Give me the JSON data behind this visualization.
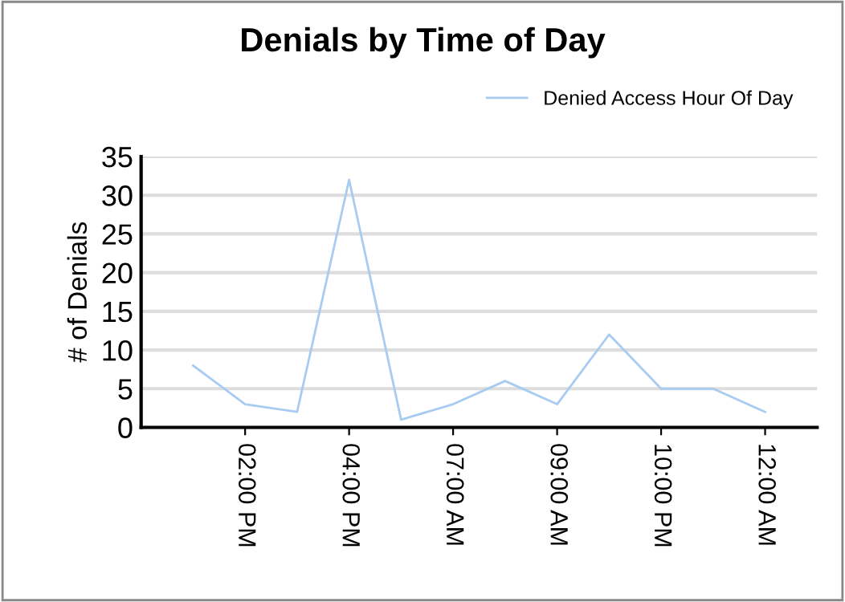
{
  "chart_data": {
    "type": "line",
    "title": "Denials by Time of Day",
    "ylabel": "# of Denials",
    "categories": [
      null,
      "02:00 PM",
      null,
      "04:00 PM",
      null,
      "07:00 AM",
      null,
      "09:00 AM",
      null,
      "10:00 PM",
      null,
      "12:00 AM"
    ],
    "series": [
      {
        "name": "Denied Access Hour Of Day",
        "color": "#a8cbf2",
        "values": [
          8,
          3,
          2,
          32,
          1,
          3,
          6,
          3,
          12,
          5,
          5,
          2
        ]
      }
    ],
    "ylim": [
      0,
      35
    ],
    "yticks": [
      0,
      5,
      10,
      15,
      20,
      25,
      30,
      35
    ],
    "grid": "y",
    "legend": "top right",
    "marker": "none",
    "line_style": "solid"
  }
}
